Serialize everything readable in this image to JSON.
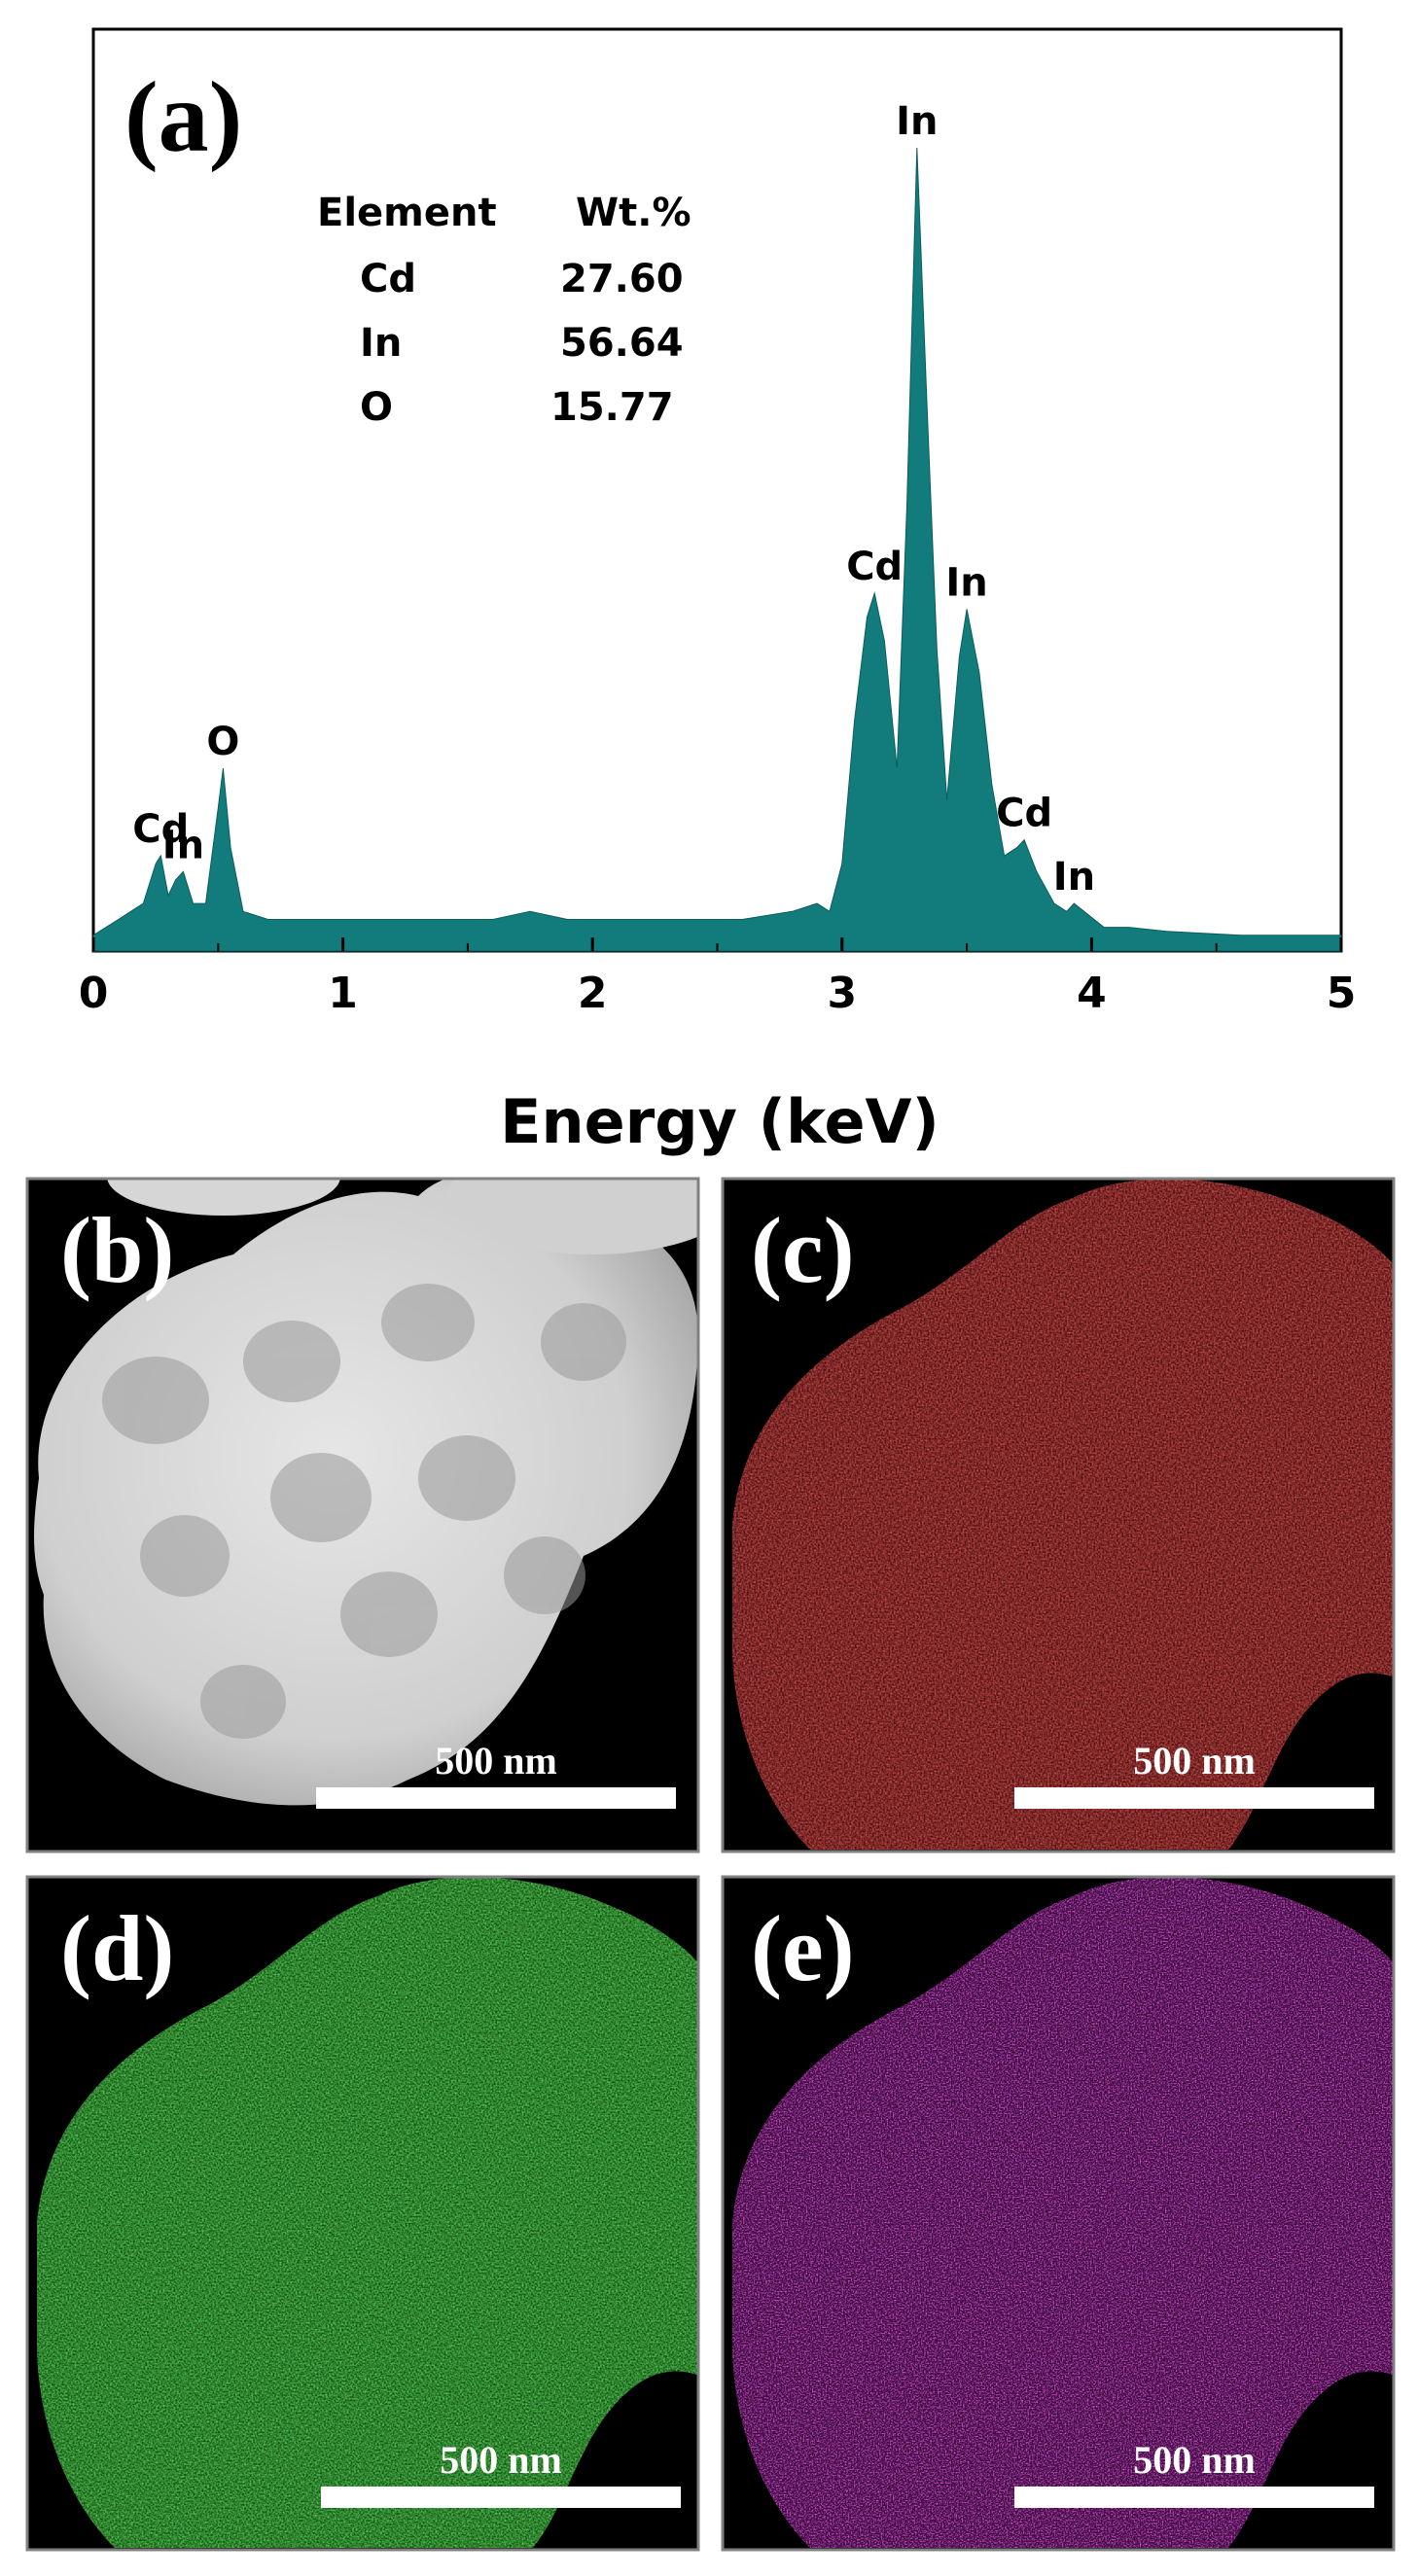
{
  "chart_data": {
    "type": "area",
    "panel_label": "(a)",
    "xlabel": "Energy (keV)",
    "ylabel": "",
    "xlim": [
      0,
      5
    ],
    "ylim": [
      0,
      100
    ],
    "x_ticks": [
      "0",
      "1",
      "2",
      "3",
      "4",
      "5"
    ],
    "grid": false,
    "fill_color": "#127C7C",
    "spectrum": {
      "x": [
        0.0,
        0.1,
        0.2,
        0.25,
        0.27,
        0.3,
        0.33,
        0.36,
        0.4,
        0.45,
        0.5,
        0.52,
        0.55,
        0.6,
        0.7,
        0.8,
        0.9,
        1.0,
        1.2,
        1.5,
        1.6,
        1.75,
        1.9,
        2.15,
        2.4,
        2.6,
        2.8,
        2.9,
        2.95,
        3.0,
        3.05,
        3.1,
        3.13,
        3.17,
        3.22,
        3.26,
        3.3,
        3.34,
        3.38,
        3.42,
        3.47,
        3.5,
        3.55,
        3.6,
        3.65,
        3.7,
        3.73,
        3.78,
        3.85,
        3.9,
        3.93,
        3.97,
        4.05,
        4.15,
        4.3,
        4.6,
        5.0
      ],
      "y": [
        1,
        3,
        5,
        10,
        11,
        6,
        8,
        9,
        5,
        5,
        17,
        22,
        12,
        4,
        3,
        3,
        3,
        3,
        3,
        3,
        3,
        4,
        3,
        3,
        3,
        3,
        4,
        5,
        4,
        10,
        28,
        41,
        44,
        38,
        22,
        55,
        100,
        68,
        37,
        18,
        36,
        42,
        34,
        20,
        11,
        12,
        13,
        9,
        5,
        4,
        5,
        4,
        2,
        2,
        1.5,
        1,
        1
      ]
    },
    "peak_labels": [
      {
        "text": "Cd",
        "x": 0.27
      },
      {
        "text": "In",
        "x": 0.36
      },
      {
        "text": "O",
        "x": 0.52
      },
      {
        "text": "Cd",
        "x": 3.13
      },
      {
        "text": "In",
        "x": 3.3
      },
      {
        "text": "In",
        "x": 3.5
      },
      {
        "text": "Cd",
        "x": 3.73
      },
      {
        "text": "In",
        "x": 3.93
      }
    ],
    "composition_table": {
      "headers": [
        "Element",
        "Wt.%"
      ],
      "rows": [
        {
          "element": "Cd",
          "wt": "27.60"
        },
        {
          "element": "In",
          "wt": "56.64"
        },
        {
          "element": "O",
          "wt": "15.77"
        }
      ]
    }
  },
  "map_panels": [
    {
      "id": "b",
      "label": "(b)",
      "scale_bar": "500 nm",
      "kind": "sem",
      "color": "#d8d8d8"
    },
    {
      "id": "c",
      "label": "(c)",
      "scale_bar": "500 nm",
      "kind": "map",
      "color": "#c81f1f"
    },
    {
      "id": "d",
      "label": "(d)",
      "scale_bar": "500 nm",
      "kind": "map",
      "color": "#22b422"
    },
    {
      "id": "e",
      "label": "(e)",
      "scale_bar": "500 nm",
      "kind": "map",
      "color": "#e81ee8"
    }
  ]
}
